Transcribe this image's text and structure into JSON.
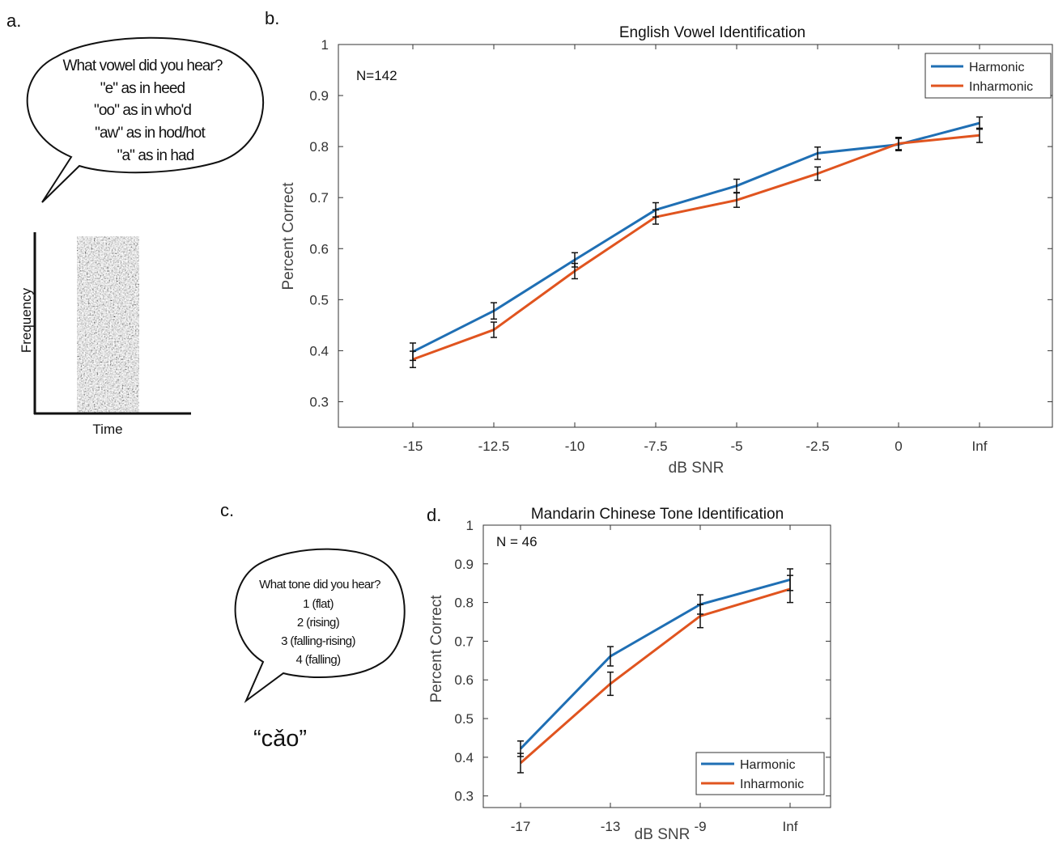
{
  "colors": {
    "harmonic": "#1f6fb4",
    "inharmonic": "#e0541f",
    "error": "#111111"
  },
  "panel_a": {
    "label": "a.",
    "bubble_lines": [
      "What vowel did you hear?",
      "\"e\" as in heed",
      "\"oo\" as in who'd",
      "\"aw\" as in hod/hot",
      "\"a\" as in had"
    ],
    "spectrogram_ylabel": "Frequency",
    "spectrogram_xlabel": "Time"
  },
  "panel_c": {
    "label": "c.",
    "bubble_lines": [
      "What tone did you hear?",
      "1 (flat)",
      "2 (rising)",
      "3 (falling-rising)",
      "4 (falling)"
    ],
    "word": "“cǎo”"
  },
  "chart_data": [
    {
      "panel": "b.",
      "type": "line",
      "title": "English Vowel Identification",
      "xlabel": "dB SNR",
      "ylabel": "Percent Correct",
      "annotation": "N=142",
      "categories": [
        "-15",
        "-12.5",
        "-10",
        "-7.5",
        "-5",
        "-2.5",
        "0",
        "Inf"
      ],
      "ylim": [
        0.25,
        1
      ],
      "yticks": [
        "0.3",
        "0.4",
        "0.5",
        "0.6",
        "0.7",
        "0.8",
        "0.9",
        "1"
      ],
      "legend": "top-right",
      "series": [
        {
          "name": "Harmonic",
          "values": [
            0.398,
            0.478,
            0.578,
            0.676,
            0.723,
            0.787,
            0.804,
            0.846
          ],
          "errors": [
            0.017,
            0.016,
            0.014,
            0.014,
            0.013,
            0.012,
            0.012,
            0.012
          ]
        },
        {
          "name": "Inharmonic",
          "values": [
            0.383,
            0.441,
            0.556,
            0.662,
            0.695,
            0.747,
            0.806,
            0.822
          ],
          "errors": [
            0.016,
            0.015,
            0.015,
            0.014,
            0.014,
            0.013,
            0.012,
            0.014
          ]
        }
      ]
    },
    {
      "panel": "d.",
      "type": "line",
      "title": "Mandarin Chinese Tone Identification",
      "xlabel": "dB SNR",
      "ylabel": "Percent Correct",
      "annotation": "N = 46",
      "categories": [
        "-17",
        "-13",
        "-9",
        "Inf"
      ],
      "ylim": [
        0.27,
        1
      ],
      "yticks": [
        "0.3",
        "0.4",
        "0.5",
        "0.6",
        "0.7",
        "0.8",
        "0.9",
        "1"
      ],
      "legend": "bottom-right",
      "series": [
        {
          "name": "Harmonic",
          "values": [
            0.422,
            0.661,
            0.795,
            0.859
          ],
          "errors": [
            0.02,
            0.025,
            0.025,
            0.028
          ]
        },
        {
          "name": "Inharmonic",
          "values": [
            0.385,
            0.59,
            0.765,
            0.835
          ],
          "errors": [
            0.025,
            0.03,
            0.03,
            0.035
          ]
        }
      ]
    }
  ]
}
